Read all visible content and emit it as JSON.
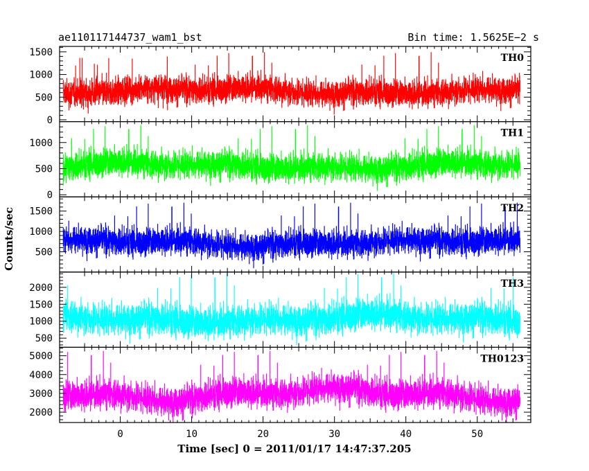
{
  "header": {
    "title": "ae110117144737_wam1_bst",
    "bin_time": "Bin time: 1.5625E−2 s"
  },
  "chart_data": {
    "type": "line",
    "title": "ae110117144737_wam1_bst",
    "xlabel": "Time [sec] 0 = 2011/01/17 14:47:37.205",
    "ylabel": "Counts/sec",
    "xlim": [
      -8.5,
      57.5
    ],
    "x_range": [
      -8.0,
      56.0
    ],
    "x_step": 0.015625,
    "x_ticks": [
      0,
      10,
      20,
      30,
      40,
      50
    ],
    "panels": [
      {
        "name": "TH0",
        "color": "#ff0000",
        "ylim": [
          -40,
          1620
        ],
        "yticks": [
          0,
          500,
          1000,
          1500
        ],
        "mean": 640,
        "spread": 210,
        "min": 20,
        "max": 1600
      },
      {
        "name": "TH1",
        "color": "#00ff00",
        "ylim": [
          -40,
          1400
        ],
        "yticks": [
          0,
          500,
          1000
        ],
        "mean": 560,
        "spread": 190,
        "min": 20,
        "max": 1380
      },
      {
        "name": "TH2",
        "color": "#0000ff",
        "ylim": [
          0,
          1850
        ],
        "yticks": [
          500,
          1000,
          1500
        ],
        "mean": 730,
        "spread": 240,
        "min": 40,
        "max": 1850
      },
      {
        "name": "TH3",
        "color": "#00ffff",
        "ylim": [
          230,
          2450
        ],
        "yticks": [
          500,
          1000,
          1500,
          2000
        ],
        "mean": 1080,
        "spread": 330,
        "min": 240,
        "max": 2420
      },
      {
        "name": "TH0123",
        "color": "#ff00ff",
        "ylim": [
          1450,
          5450
        ],
        "yticks": [
          2000,
          3000,
          4000,
          5000
        ],
        "mean": 2980,
        "spread": 560,
        "min": 1460,
        "max": 5300
      }
    ]
  }
}
